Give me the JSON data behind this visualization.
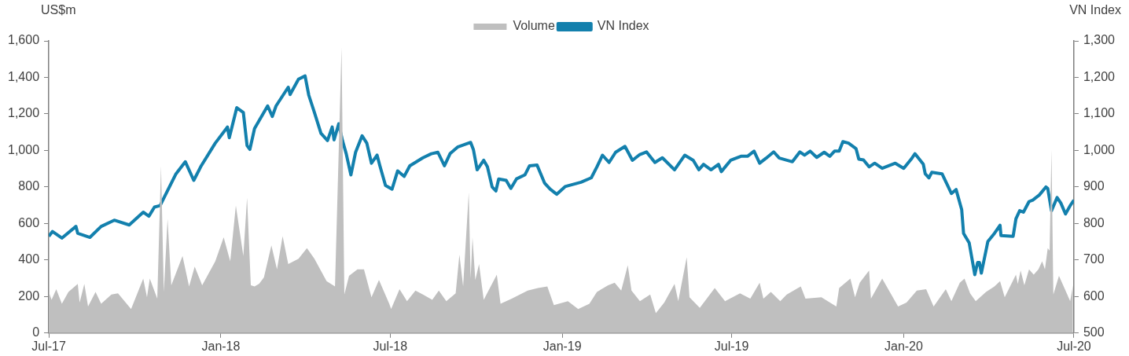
{
  "chart_data": {
    "type": "line",
    "ylabel": "US$m",
    "y2label": "VN Index",
    "legend": "top",
    "marker": "none",
    "xlim": [
      "2017-07-01",
      "2020-07-01"
    ],
    "xticks": [
      {
        "value": "2017-07-01",
        "label": "Jul-17"
      },
      {
        "value": "2018-01-01",
        "label": "Jan-18"
      },
      {
        "value": "2018-07-01",
        "label": "Jul-18"
      },
      {
        "value": "2019-01-01",
        "label": "Jan-19"
      },
      {
        "value": "2019-07-01",
        "label": "Jul-19"
      },
      {
        "value": "2020-01-01",
        "label": "Jan-20"
      },
      {
        "value": "2020-07-01",
        "label": "Jul-20"
      }
    ],
    "ylim": [
      0,
      1600
    ],
    "yticks": [
      {
        "value": 0,
        "label": "0"
      },
      {
        "value": 200,
        "label": "200"
      },
      {
        "value": 400,
        "label": "400"
      },
      {
        "value": 600,
        "label": "600"
      },
      {
        "value": 800,
        "label": "800"
      },
      {
        "value": 1000,
        "label": "1,000"
      },
      {
        "value": 1200,
        "label": "1,200"
      },
      {
        "value": 1400,
        "label": "1,400"
      },
      {
        "value": 1600,
        "label": "1,600"
      }
    ],
    "y2lim": [
      500,
      1300
    ],
    "y2ticks": [
      {
        "value": 500,
        "label": "500"
      },
      {
        "value": 600,
        "label": "600"
      },
      {
        "value": 700,
        "label": "700"
      },
      {
        "value": 800,
        "label": "800"
      },
      {
        "value": 900,
        "label": "900"
      },
      {
        "value": 1000,
        "label": "1,000"
      },
      {
        "value": 1100,
        "label": "1,100"
      },
      {
        "value": 1200,
        "label": "1,200"
      },
      {
        "value": 1300,
        "label": "1,300"
      }
    ],
    "series": [
      {
        "name": "Volume",
        "type": "area",
        "color": "#bfbfbf",
        "x": [
          "2017-07-01",
          "2017-07-04",
          "2017-07-09",
          "2017-07-15",
          "2017-07-22",
          "2017-08-01",
          "2017-08-03",
          "2017-08-08",
          "2017-08-12",
          "2017-08-20",
          "2017-08-26",
          "2017-09-06",
          "2017-09-13",
          "2017-09-27",
          "2017-10-10",
          "2017-10-14",
          "2017-10-17",
          "2017-10-25",
          "2017-10-29",
          "2017-11-01",
          "2017-11-05",
          "2017-11-09",
          "2017-11-21",
          "2017-11-28",
          "2017-12-04",
          "2017-12-12",
          "2017-12-26",
          "2018-01-04",
          "2018-01-11",
          "2018-01-17",
          "2018-01-25",
          "2018-01-29",
          "2018-02-02",
          "2018-02-06",
          "2018-02-11",
          "2018-02-16",
          "2018-02-24",
          "2018-03-02",
          "2018-03-08",
          "2018-03-14",
          "2018-03-25",
          "2018-04-03",
          "2018-04-11",
          "2018-04-24",
          "2018-05-03",
          "2018-05-10",
          "2018-05-13",
          "2018-05-18",
          "2018-05-27",
          "2018-06-03",
          "2018-06-11",
          "2018-06-19",
          "2018-06-30",
          "2018-07-02",
          "2018-07-11",
          "2018-07-19",
          "2018-07-28",
          "2018-08-05",
          "2018-08-15",
          "2018-08-22",
          "2018-08-30",
          "2018-09-09",
          "2018-09-13",
          "2018-09-17",
          "2018-09-23",
          "2018-09-25",
          "2018-09-27",
          "2018-09-30",
          "2018-10-04",
          "2018-10-09",
          "2018-10-23",
          "2018-10-27",
          "2018-11-08",
          "2018-11-25",
          "2018-12-06",
          "2018-12-16",
          "2018-12-23",
          "2019-01-07",
          "2019-01-18",
          "2019-01-30",
          "2019-02-07",
          "2019-02-19",
          "2019-02-26",
          "2019-03-05",
          "2019-03-12",
          "2019-03-16",
          "2019-03-25",
          "2019-04-05",
          "2019-04-11",
          "2019-04-20",
          "2019-05-01",
          "2019-05-05",
          "2019-05-14",
          "2019-05-17",
          "2019-05-28",
          "2019-06-13",
          "2019-06-24",
          "2019-07-10",
          "2019-07-21",
          "2019-07-31",
          "2019-08-04",
          "2019-08-12",
          "2019-08-22",
          "2019-08-29",
          "2019-09-13",
          "2019-09-18",
          "2019-10-05",
          "2019-10-21",
          "2019-10-24",
          "2019-11-05",
          "2019-11-10",
          "2019-11-15",
          "2019-11-25",
          "2019-11-27",
          "2019-12-09",
          "2019-12-18",
          "2019-12-26",
          "2020-01-04",
          "2020-01-15",
          "2020-01-25",
          "2020-02-02",
          "2020-02-15",
          "2020-02-21",
          "2020-03-01",
          "2020-03-06",
          "2020-03-12",
          "2020-03-18",
          "2020-03-29",
          "2020-04-07",
          "2020-04-13",
          "2020-04-18",
          "2020-04-30",
          "2020-05-02",
          "2020-05-05",
          "2020-05-09",
          "2020-05-14",
          "2020-05-19",
          "2020-05-24",
          "2020-05-28",
          "2020-05-31",
          "2020-06-03",
          "2020-06-05",
          "2020-06-07",
          "2020-06-09",
          "2020-06-15",
          "2020-06-22",
          "2020-06-27",
          "2020-06-30"
        ],
        "values": [
          225,
          182,
          240,
          160,
          225,
          269,
          167,
          269,
          145,
          225,
          160,
          211,
          218,
          131,
          298,
          196,
          298,
          189,
          916,
          225,
          625,
          262,
          422,
          255,
          364,
          262,
          393,
          524,
          393,
          698,
          422,
          742,
          262,
          255,
          270,
          305,
          480,
          349,
          531,
          378,
          407,
          465,
          407,
          284,
          255,
          1564,
          211,
          313,
          349,
          349,
          196,
          291,
          160,
          131,
          240,
          175,
          233,
          211,
          182,
          233,
          175,
          218,
          429,
          255,
          771,
          298,
          524,
          291,
          378,
          182,
          320,
          160,
          189,
          233,
          247,
          255,
          153,
          175,
          131,
          160,
          225,
          262,
          276,
          233,
          371,
          233,
          175,
          211,
          109,
          167,
          269,
          175,
          415,
          196,
          138,
          247,
          175,
          218,
          189,
          276,
          189,
          225,
          175,
          211,
          255,
          189,
          196,
          145,
          247,
          298,
          196,
          276,
          342,
          189,
          298,
          218,
          145,
          167,
          233,
          240,
          145,
          240,
          175,
          276,
          298,
          218,
          175,
          225,
          255,
          284,
          196,
          320,
          269,
          342,
          262,
          349,
          320,
          349,
          393,
          349,
          465,
          451,
          1004,
          211,
          313,
          233,
          175,
          262
        ]
      },
      {
        "name": "VN Index",
        "type": "line",
        "axis": "y2",
        "color": "#1380ad",
        "x": [
          "2017-07-01",
          "2017-07-05",
          "2017-07-15",
          "2017-07-30",
          "2017-08-01",
          "2017-08-14",
          "2017-08-26",
          "2017-09-09",
          "2017-09-25",
          "2017-10-10",
          "2017-10-16",
          "2017-10-22",
          "2017-10-28",
          "2017-11-14",
          "2017-11-24",
          "2017-12-03",
          "2017-12-11",
          "2017-12-26",
          "2018-01-08",
          "2018-01-10",
          "2018-01-18",
          "2018-01-25",
          "2018-01-29",
          "2018-02-01",
          "2018-02-06",
          "2018-02-20",
          "2018-02-25",
          "2018-03-01",
          "2018-03-14",
          "2018-03-16",
          "2018-03-25",
          "2018-04-01",
          "2018-04-05",
          "2018-04-11",
          "2018-04-18",
          "2018-04-25",
          "2018-04-30",
          "2018-05-02",
          "2018-05-07",
          "2018-05-11",
          "2018-05-15",
          "2018-05-20",
          "2018-05-25",
          "2018-06-01",
          "2018-06-06",
          "2018-06-11",
          "2018-06-17",
          "2018-06-20",
          "2018-06-26",
          "2018-07-03",
          "2018-07-09",
          "2018-07-16",
          "2018-07-22",
          "2018-08-05",
          "2018-08-14",
          "2018-08-21",
          "2018-08-28",
          "2018-09-03",
          "2018-09-11",
          "2018-09-25",
          "2018-09-28",
          "2018-10-02",
          "2018-10-09",
          "2018-10-13",
          "2018-10-18",
          "2018-10-22",
          "2018-10-25",
          "2018-11-02",
          "2018-11-07",
          "2018-11-13",
          "2018-11-22",
          "2018-11-27",
          "2018-12-05",
          "2018-12-13",
          "2018-12-19",
          "2018-12-26",
          "2019-01-04",
          "2019-01-21",
          "2019-02-01",
          "2019-02-07",
          "2019-02-13",
          "2019-02-20",
          "2019-02-27",
          "2019-03-09",
          "2019-03-17",
          "2019-03-25",
          "2019-04-01",
          "2019-04-10",
          "2019-04-18",
          "2019-05-01",
          "2019-05-12",
          "2019-05-21",
          "2019-05-27",
          "2019-06-01",
          "2019-06-09",
          "2019-06-17",
          "2019-06-20",
          "2019-06-30",
          "2019-07-11",
          "2019-07-18",
          "2019-07-25",
          "2019-07-31",
          "2019-08-07",
          "2019-08-15",
          "2019-08-21",
          "2019-09-04",
          "2019-09-12",
          "2019-09-17",
          "2019-09-23",
          "2019-09-30",
          "2019-10-08",
          "2019-10-14",
          "2019-10-19",
          "2019-10-24",
          "2019-10-28",
          "2019-11-03",
          "2019-11-11",
          "2019-11-14",
          "2019-11-19",
          "2019-11-25",
          "2019-12-01",
          "2019-12-09",
          "2019-12-23",
          "2020-01-01",
          "2020-01-09",
          "2020-01-13",
          "2020-01-22",
          "2020-01-24",
          "2020-01-28",
          "2020-01-31",
          "2020-02-11",
          "2020-02-17",
          "2020-02-21",
          "2020-02-26",
          "2020-03-03",
          "2020-03-05",
          "2020-03-11",
          "2020-03-17",
          "2020-03-20",
          "2020-03-22",
          "2020-03-24",
          "2020-03-31",
          "2020-04-07",
          "2020-04-13",
          "2020-04-14",
          "2020-04-27",
          "2020-04-30",
          "2020-05-04",
          "2020-05-08",
          "2020-05-14",
          "2020-05-18",
          "2020-05-25",
          "2020-06-01",
          "2020-06-03",
          "2020-06-07",
          "2020-06-13",
          "2020-06-17",
          "2020-06-22",
          "2020-06-27",
          "2020-07-01"
        ],
        "values": [
          765,
          778,
          760,
          792,
          773,
          762,
          792,
          809,
          796,
          831,
          820,
          845,
          849,
          936,
          969,
          918,
          958,
          1020,
          1064,
          1035,
          1117,
          1104,
          1013,
          1003,
          1060,
          1122,
          1093,
          1122,
          1173,
          1153,
          1195,
          1204,
          1151,
          1104,
          1047,
          1027,
          1064,
          1029,
          1073,
          1027,
          991,
          933,
          995,
          1040,
          1020,
          965,
          987,
          958,
          904,
          894,
          944,
          929,
          958,
          980,
          991,
          995,
          958,
          991,
          1009,
          1022,
          1002,
          947,
          973,
          955,
          900,
          889,
          922,
          918,
          896,
          922,
          933,
          958,
          960,
          911,
          894,
          880,
          901,
          913,
          925,
          955,
          987,
          967,
          995,
          1011,
          973,
          989,
          996,
          967,
          980,
          947,
          987,
          973,
          947,
          962,
          947,
          962,
          942,
          973,
          984,
          984,
          998,
          965,
          979,
          996,
          979,
          969,
          996,
          987,
          998,
          981,
          995,
          984,
          998,
          998,
          1024,
          1020,
          1005,
          976,
          974,
          955,
          965,
          951,
          965,
          951,
          976,
          991,
          962,
          936,
          925,
          940,
          936,
          904,
          882,
          893,
          838,
          773,
          747,
          660,
          693,
          693,
          664,
          751,
          773,
          795,
          767,
          765,
          813,
          835,
          831,
          860,
          864,
          878,
          900,
          896,
          835,
          871,
          856,
          826,
          849,
          864
        ]
      }
    ]
  }
}
